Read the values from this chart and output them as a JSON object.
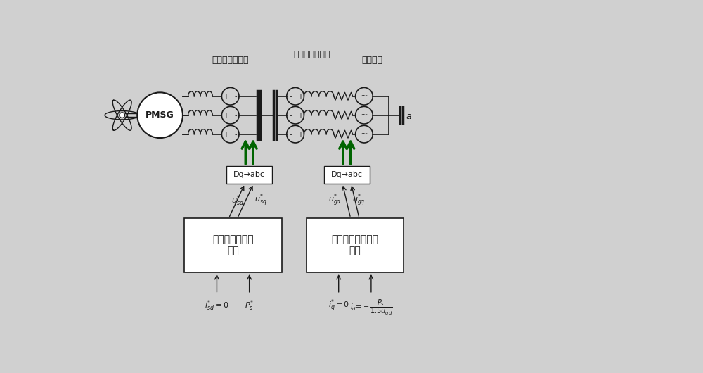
{
  "bg_color": "#d8d8d8",
  "labels": {
    "jice_label": "机侧可控电压源",
    "wangce_label": "网侧可控电压源",
    "lixiang_label": "理想电网",
    "pmsg": "PMSG",
    "dq_abc1": "Dq→abc",
    "dq_abc2": "Dq→abc",
    "jice_ctrl": "机侧变流器控制\n模块",
    "wangce_ctrl": "电网侧变流器控制\n模块"
  },
  "colors": {
    "line": "#1a1a1a",
    "green_arrow": "#006400",
    "box_fill": "#ffffff",
    "bg": "#d0d0d0"
  },
  "font": "SimHei"
}
